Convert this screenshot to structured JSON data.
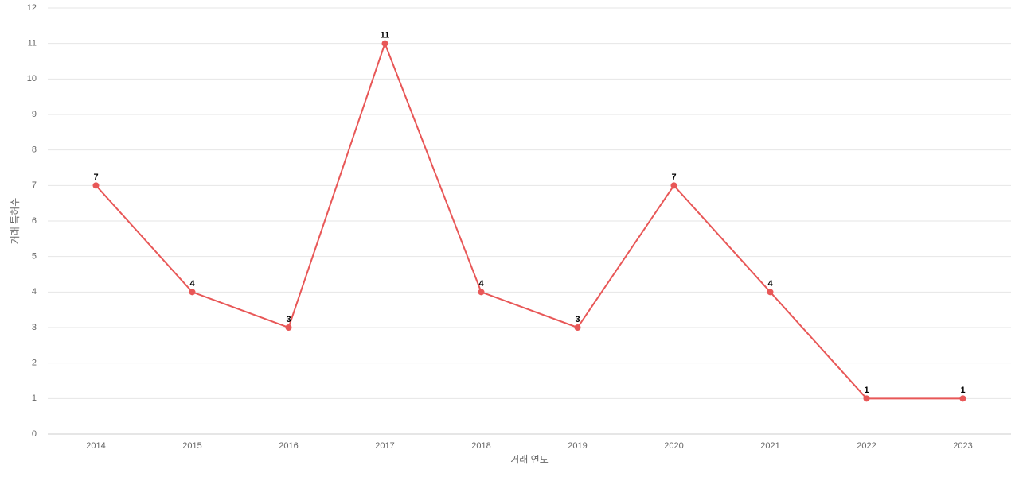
{
  "chart_data": {
    "type": "line",
    "x_label": "거래 연도",
    "y_label": "거래 특허수",
    "categories": [
      "2014",
      "2015",
      "2016",
      "2017",
      "2018",
      "2019",
      "2020",
      "2021",
      "2022",
      "2023"
    ],
    "values": [
      7,
      4,
      3,
      11,
      4,
      3,
      7,
      4,
      1,
      1
    ],
    "color": "#e85757",
    "ylim": [
      0,
      12
    ],
    "yticks": [
      0,
      1,
      2,
      3,
      4,
      5,
      6,
      7,
      8,
      9,
      10,
      11,
      12
    ],
    "grid": true
  }
}
